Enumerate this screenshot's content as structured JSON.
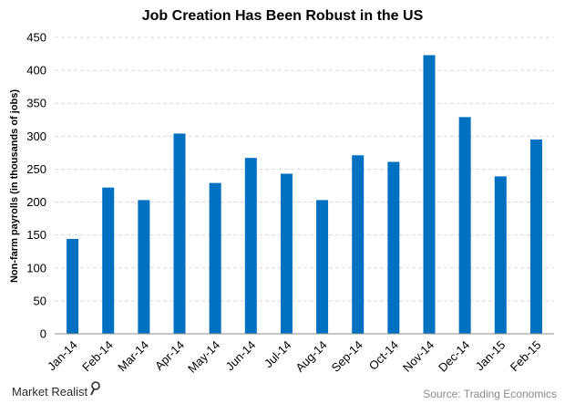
{
  "chart_data": {
    "type": "bar",
    "title": "Job Creation Has Been Robust in the US",
    "ylabel": "Non-farm payrolls (in thousands of jobs)",
    "xlabel": "",
    "categories": [
      "Jan-14",
      "Feb-14",
      "Mar-14",
      "Apr-14",
      "May-14",
      "Jun-14",
      "Jul-14",
      "Aug-14",
      "Sep-14",
      "Oct-14",
      "Nov-14",
      "Dec-14",
      "Jan-15",
      "Feb-15"
    ],
    "values": [
      144,
      222,
      203,
      304,
      229,
      267,
      243,
      203,
      271,
      261,
      423,
      329,
      239,
      295
    ],
    "ylim": [
      0,
      450
    ],
    "yticks": [
      0,
      50,
      100,
      150,
      200,
      250,
      300,
      350,
      400,
      450
    ],
    "grid": true,
    "bar_color": "#0070c0"
  },
  "footer": {
    "brand": "Market Realist",
    "source": "Source: Trading Economics"
  }
}
